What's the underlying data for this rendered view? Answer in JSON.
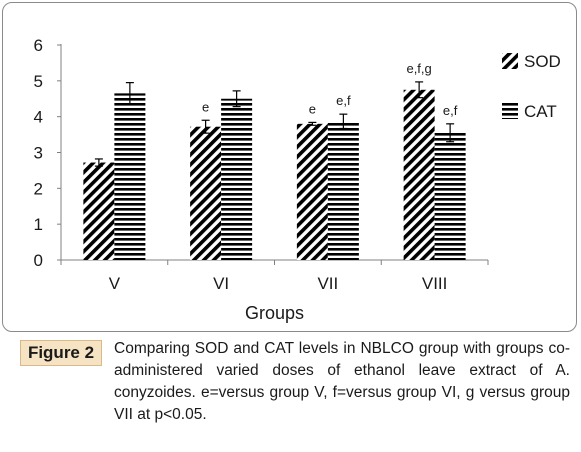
{
  "chart_data": {
    "type": "bar",
    "title": "",
    "xlabel": "Groups",
    "ylabel": "",
    "ylim": [
      0,
      6
    ],
    "yticks": [
      0,
      1,
      2,
      3,
      4,
      5,
      6
    ],
    "grid": false,
    "legend_position": "right",
    "categories": [
      "V",
      "VI",
      "VII",
      "VIII"
    ],
    "series": [
      {
        "name": "SOD",
        "pattern": "diagonal-stripes",
        "values": [
          2.72,
          3.72,
          3.8,
          4.75
        ],
        "errors": [
          0.1,
          0.18,
          0.04,
          0.22
        ],
        "annotations": [
          "",
          "e",
          "e",
          "e,f,g"
        ]
      },
      {
        "name": "CAT",
        "pattern": "horizontal-stripes",
        "values": [
          4.65,
          4.5,
          3.87,
          3.55
        ],
        "errors": [
          0.3,
          0.22,
          0.2,
          0.25
        ],
        "annotations": [
          "",
          "",
          "e,f",
          "e,f"
        ]
      }
    ],
    "colors": {
      "fill": "#000000",
      "background": "#ffffff",
      "axis": "#808080"
    }
  },
  "caption": {
    "label": "Figure 2",
    "text": "Comparing SOD and CAT levels in NBLCO group with groups co-administered varied doses of ethanol leave extract of A. conyzoides. e=versus group V, f=versus group VI, g versus group VII at p<0.05."
  }
}
